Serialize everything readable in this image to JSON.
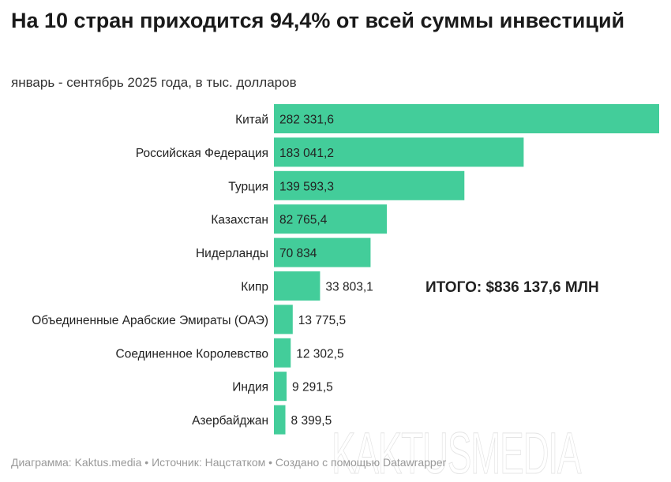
{
  "title": "На 10 стран приходится 94,4% от всей суммы инвестиций",
  "subtitle": "январь - сентябрь 2025 года, в тыс. долларов",
  "annotation": "ИТОГО: $836 137,6 МЛН",
  "footer": "Диаграмма: Kaktus.media • Источник: Нацстатком • Создано с помощью Datawrapper",
  "watermark": "KAKTUSMEDIA",
  "colors": {
    "bar": "#43cd9a",
    "label": "#222222"
  },
  "chart_data": {
    "type": "bar",
    "orientation": "horizontal",
    "categories": [
      "Китай",
      "Российская Федерация",
      "Турция",
      "Казахстан",
      "Нидерланды",
      "Кипр",
      "Объединенные Арабские Эмираты (ОАЭ)",
      "Соединенное Королевство",
      "Индия",
      "Азербайджан"
    ],
    "values": [
      282331.6,
      183041.2,
      139593.3,
      82765.4,
      70834,
      33803.1,
      13775.5,
      12302.5,
      9291.5,
      8399.5
    ],
    "value_labels": [
      "282 331,6",
      "183 041,2",
      "139 593,3",
      "82 765,4",
      "70 834",
      "33 803,1",
      "13 775,5",
      "12 302,5",
      "9 291,5",
      "8 399,5"
    ],
    "xlim": [
      0,
      282331.6
    ],
    "grid": false
  }
}
